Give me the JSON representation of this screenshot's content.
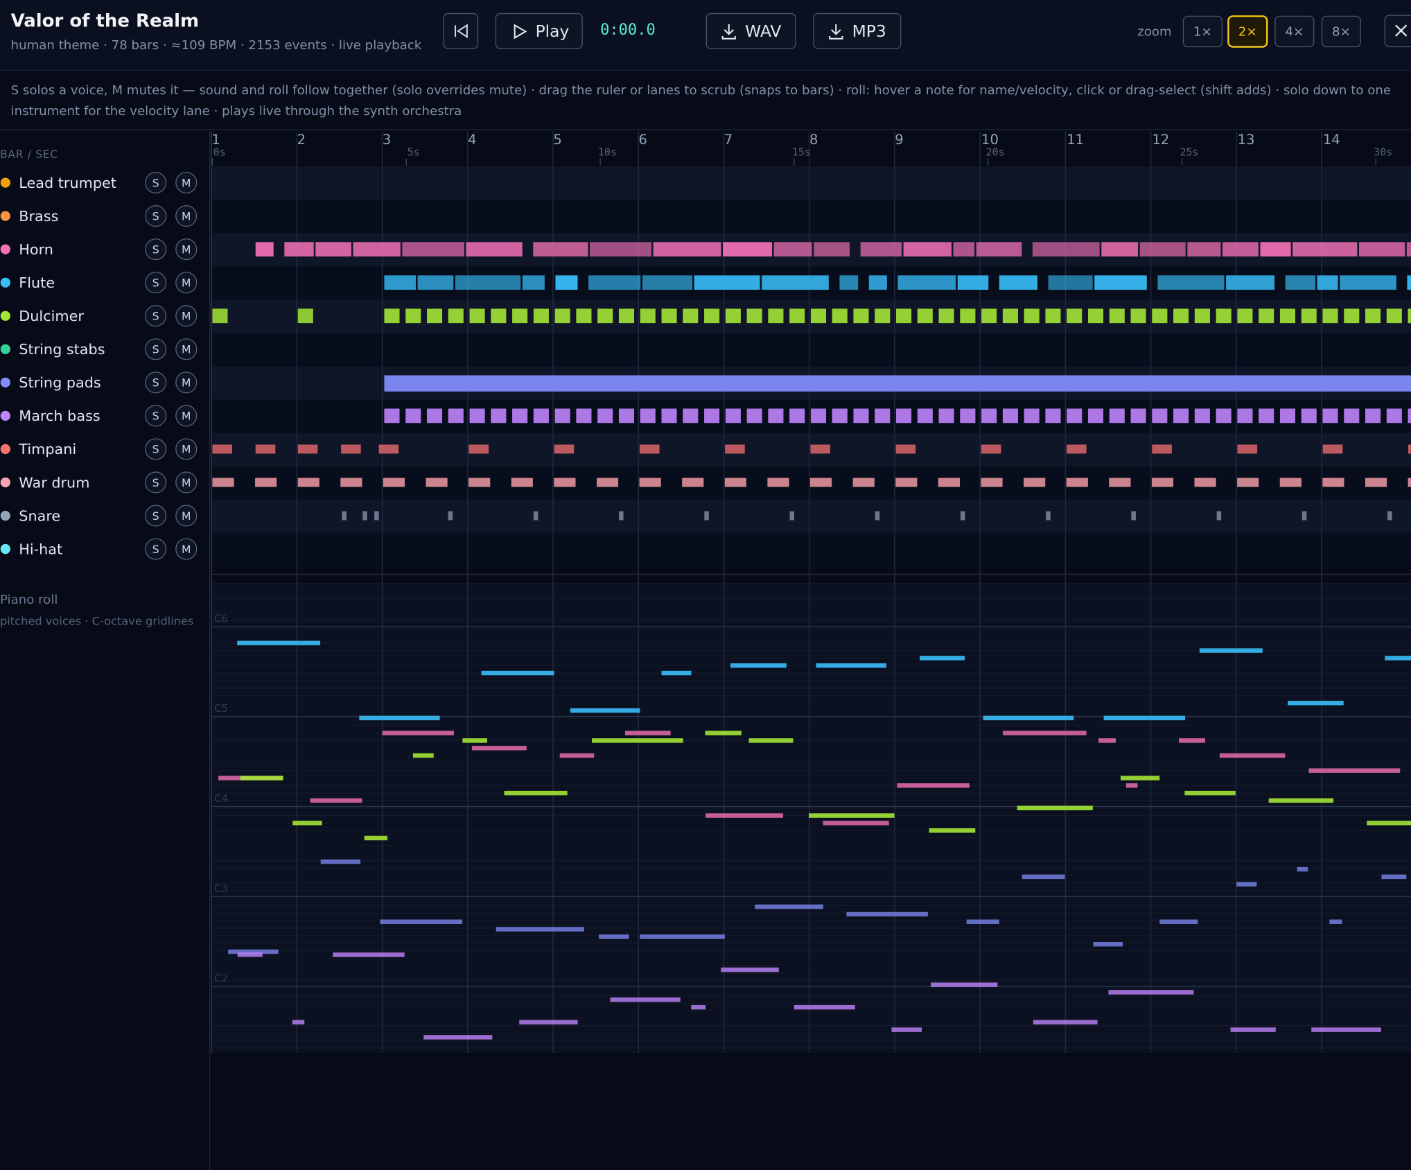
{
  "header": {
    "title": "Valor of the Realm",
    "subtitle": "human theme · 78 bars · ≈109 BPM · 2153 events · live playback",
    "play": "Play",
    "time": "0:00.0",
    "wav": "WAV",
    "mp3": "MP3",
    "zoom_label": "zoom",
    "zoom_options": [
      "1×",
      "2×",
      "4×",
      "8×"
    ],
    "zoom_active": 1
  },
  "help": [
    "S solos a voice, M mutes it — sound and roll follow together (solo overrides mute) · drag the ruler or lanes to scrub (snaps to bars) · roll: hover a note for name/velocity, click or drag-select (shift adds) · solo down to one",
    "instrument for the velocity lane · plays live through the synth orchestra"
  ],
  "ruler": {
    "label": "BAR / SEC",
    "bars": [
      1,
      2,
      3,
      4,
      5,
      6,
      7,
      8,
      9,
      10,
      11,
      12,
      13,
      14
    ],
    "seconds": [
      "0s",
      "5s",
      "10s",
      "15s",
      "20s",
      "25s",
      "30s"
    ]
  },
  "tracks": [
    {
      "name": "Lead trumpet",
      "color": "#f59e0b",
      "solo": "S",
      "mute": "M"
    },
    {
      "name": "Brass",
      "color": "#fb923c",
      "solo": "S",
      "mute": "M"
    },
    {
      "name": "Horn",
      "color": "#f472b6",
      "solo": "S",
      "mute": "M"
    },
    {
      "name": "Flute",
      "color": "#38bdf8",
      "solo": "S",
      "mute": "M"
    },
    {
      "name": "Dulcimer",
      "color": "#a3e635",
      "solo": "S",
      "mute": "M"
    },
    {
      "name": "String stabs",
      "color": "#34d399",
      "solo": "S",
      "mute": "M"
    },
    {
      "name": "String pads",
      "color": "#818cf8",
      "solo": "S",
      "mute": "M"
    },
    {
      "name": "March bass",
      "color": "#c084fc",
      "solo": "S",
      "mute": "M"
    },
    {
      "name": "Timpani",
      "color": "#f87171",
      "solo": "S",
      "mute": "M"
    },
    {
      "name": "War drum",
      "color": "#fda4af",
      "solo": "S",
      "mute": "M"
    },
    {
      "name": "Snare",
      "color": "#94a3b8",
      "solo": "S",
      "mute": "M"
    },
    {
      "name": "Hi-hat",
      "color": "#67e8f9",
      "solo": "S",
      "mute": "M"
    }
  ],
  "piano_roll": {
    "title": "Piano roll",
    "subtitle": "pitched voices · C-octave gridlines",
    "octaves": [
      "C6",
      "C5",
      "C4",
      "C3",
      "C2"
    ]
  }
}
